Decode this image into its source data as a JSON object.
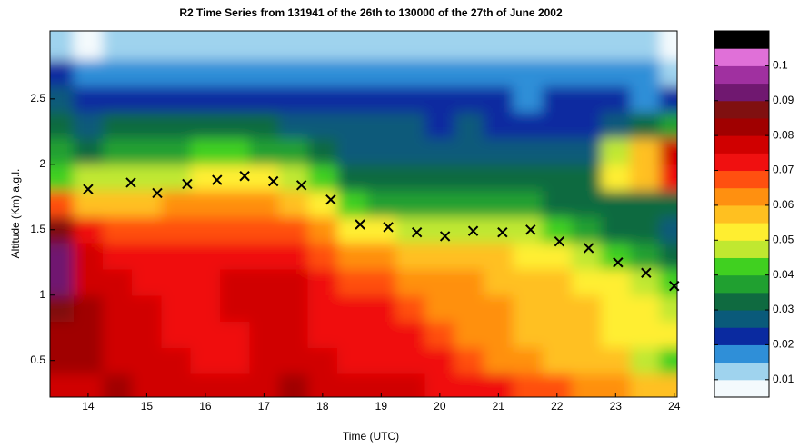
{
  "chart_data": [
    {
      "type": "heatmap",
      "title": "R2 Time Series from 131941 of the 26th to 130000 of the 27th of June 2002",
      "xlabel": "Time (UTC)",
      "ylabel": "Altitude (Km) a.g.l.",
      "x": [
        13.5,
        14,
        14.5,
        15,
        15.5,
        16,
        16.5,
        17,
        17.5,
        18,
        18.5,
        19,
        19.5,
        20,
        20.5,
        21,
        21.5,
        22,
        22.5,
        23,
        23.5,
        24
      ],
      "y": [
        0.3,
        0.5,
        0.7,
        0.9,
        1.1,
        1.3,
        1.5,
        1.7,
        1.9,
        2.1,
        2.3,
        2.5,
        2.7,
        2.9
      ],
      "z": [
        [
          0.078,
          0.077,
          0.08,
          0.078,
          0.077,
          0.075,
          0.076,
          0.078,
          0.08,
          0.079,
          0.078,
          0.076,
          0.075,
          0.074,
          0.073,
          0.07,
          0.068,
          0.066,
          0.064,
          0.062,
          0.058,
          0.056
        ],
        [
          0.08,
          0.08,
          0.078,
          0.077,
          0.075,
          0.074,
          0.073,
          0.076,
          0.077,
          0.075,
          0.074,
          0.073,
          0.072,
          0.07,
          0.066,
          0.063,
          0.06,
          0.058,
          0.056,
          0.055,
          0.045,
          0.04
        ],
        [
          0.082,
          0.082,
          0.078,
          0.076,
          0.074,
          0.072,
          0.074,
          0.076,
          0.076,
          0.074,
          0.072,
          0.071,
          0.07,
          0.066,
          0.063,
          0.06,
          0.058,
          0.056,
          0.055,
          0.054,
          0.052,
          0.05
        ],
        [
          0.086,
          0.08,
          0.077,
          0.075,
          0.073,
          0.072,
          0.075,
          0.077,
          0.076,
          0.073,
          0.071,
          0.07,
          0.068,
          0.064,
          0.062,
          0.06,
          0.058,
          0.056,
          0.055,
          0.054,
          0.052,
          0.047
        ],
        [
          0.092,
          0.078,
          0.076,
          0.074,
          0.072,
          0.072,
          0.076,
          0.077,
          0.075,
          0.072,
          0.068,
          0.066,
          0.064,
          0.062,
          0.06,
          0.059,
          0.058,
          0.056,
          0.054,
          0.05,
          0.045,
          0.04
        ],
        [
          0.093,
          0.075,
          0.074,
          0.072,
          0.071,
          0.071,
          0.073,
          0.074,
          0.072,
          0.068,
          0.062,
          0.06,
          0.058,
          0.056,
          0.056,
          0.055,
          0.054,
          0.052,
          0.048,
          0.042,
          0.038,
          0.034
        ],
        [
          0.085,
          0.07,
          0.068,
          0.067,
          0.068,
          0.068,
          0.068,
          0.068,
          0.066,
          0.062,
          0.052,
          0.05,
          0.048,
          0.045,
          0.047,
          0.046,
          0.048,
          0.042,
          0.038,
          0.034,
          0.031,
          0.029
        ],
        [
          0.068,
          0.058,
          0.058,
          0.058,
          0.06,
          0.06,
          0.062,
          0.06,
          0.058,
          0.052,
          0.04,
          0.038,
          0.036,
          0.035,
          0.035,
          0.036,
          0.036,
          0.033,
          0.031,
          0.03,
          0.03,
          0.03
        ],
        [
          0.042,
          0.045,
          0.045,
          0.045,
          0.048,
          0.05,
          0.052,
          0.05,
          0.047,
          0.04,
          0.034,
          0.032,
          0.031,
          0.03,
          0.03,
          0.031,
          0.03,
          0.03,
          0.03,
          0.052,
          0.058,
          0.07
        ],
        [
          0.036,
          0.034,
          0.036,
          0.038,
          0.037,
          0.04,
          0.04,
          0.038,
          0.035,
          0.032,
          0.029,
          0.028,
          0.028,
          0.027,
          0.027,
          0.027,
          0.027,
          0.027,
          0.028,
          0.048,
          0.055,
          0.075
        ],
        [
          0.03,
          0.028,
          0.03,
          0.032,
          0.031,
          0.031,
          0.032,
          0.031,
          0.029,
          0.027,
          0.026,
          0.025,
          0.025,
          0.024,
          0.025,
          0.024,
          0.024,
          0.023,
          0.024,
          0.028,
          0.03,
          0.038
        ],
        [
          0.026,
          0.024,
          0.022,
          0.024,
          0.024,
          0.024,
          0.024,
          0.024,
          0.022,
          0.022,
          0.022,
          0.021,
          0.021,
          0.02,
          0.02,
          0.02,
          0.019,
          0.02,
          0.02,
          0.02,
          0.019,
          0.024
        ],
        [
          0.02,
          0.016,
          0.019,
          0.018,
          0.018,
          0.019,
          0.017,
          0.018,
          0.018,
          0.018,
          0.018,
          0.017,
          0.017,
          0.016,
          0.016,
          0.016,
          0.016,
          0.015,
          0.015,
          0.015,
          0.015,
          0.014
        ],
        [
          0.011,
          0.005,
          0.014,
          0.012,
          0.013,
          0.014,
          0.013,
          0.014,
          0.013,
          0.014,
          0.013,
          0.013,
          0.012,
          0.012,
          0.012,
          0.013,
          0.012,
          0.011,
          0.01,
          0.01,
          0.01,
          0.008
        ]
      ],
      "xlim": [
        13.35,
        24.05
      ],
      "ylim": [
        0.22,
        3.02
      ],
      "xticks": [
        14,
        15,
        16,
        17,
        18,
        19,
        20,
        21,
        22,
        23,
        24
      ],
      "yticks": [
        0.5,
        1,
        1.5,
        2,
        2.5
      ],
      "clim": [
        0.005,
        0.11
      ],
      "cticks": [
        0.01,
        0.02,
        0.03,
        0.04,
        0.05,
        0.06,
        0.07,
        0.08,
        0.09,
        0.1
      ],
      "colormap": [
        "#f4fafd",
        "#9fd3ee",
        "#2f8fd8",
        "#0a2aa0",
        "#0a5a7a",
        "#0f6a40",
        "#20a030",
        "#40d020",
        "#c0e830",
        "#ffee30",
        "#ffc020",
        "#ff9010",
        "#ff5010",
        "#f01010",
        "#d00000",
        "#a00000",
        "#801010",
        "#701870",
        "#a030a0",
        "#e070d8",
        "#000000"
      ]
    },
    {
      "type": "scatter",
      "marker": "x",
      "color": "#000000",
      "x": [
        14,
        14.73,
        15.18,
        15.69,
        16.2,
        16.67,
        17.16,
        17.64,
        18.14,
        18.64,
        19.12,
        19.61,
        20.09,
        20.57,
        21.07,
        21.55,
        22.04,
        22.54,
        23.04,
        23.52,
        24
      ],
      "values": [
        1.81,
        1.86,
        1.78,
        1.85,
        1.88,
        1.91,
        1.87,
        1.84,
        1.73,
        1.54,
        1.52,
        1.48,
        1.45,
        1.49,
        1.48,
        1.5,
        1.41,
        1.36,
        1.25,
        1.17,
        1.07
      ]
    }
  ]
}
